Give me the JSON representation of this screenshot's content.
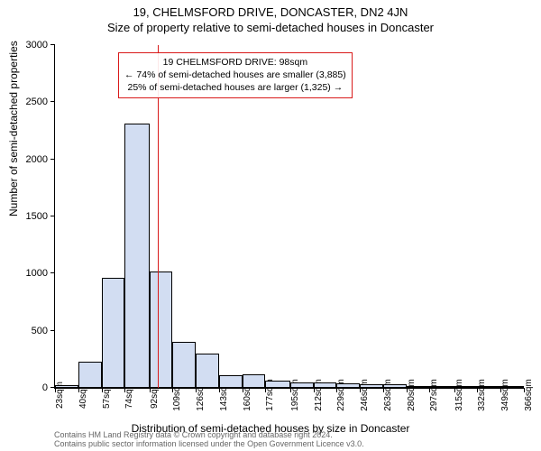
{
  "title": "19, CHELMSFORD DRIVE, DONCASTER, DN2 4JN",
  "subtitle": "Size of property relative to semi-detached houses in Doncaster",
  "ylabel": "Number of semi-detached properties",
  "xlabel": "Distribution of semi-detached houses by size in Doncaster",
  "footer_line1": "Contains HM Land Registry data © Crown copyright and database right 2024.",
  "footer_line2": "Contains public sector information licensed under the Open Government Licence v3.0.",
  "chart": {
    "type": "histogram",
    "y": {
      "min": 0,
      "max": 3000,
      "tick_step": 500,
      "ticks": [
        0,
        500,
        1000,
        1500,
        2000,
        2500,
        3000
      ]
    },
    "x": {
      "unit": "sqm",
      "tick_values": [
        23,
        40,
        57,
        74,
        92,
        109,
        126,
        143,
        160,
        177,
        195,
        212,
        229,
        246,
        263,
        280,
        297,
        315,
        332,
        349,
        366
      ]
    },
    "bars": {
      "values": [
        25,
        230,
        960,
        2310,
        1020,
        400,
        300,
        110,
        120,
        60,
        50,
        45,
        40,
        35,
        30,
        10,
        5,
        5,
        5,
        5
      ],
      "color": "#d2ddf2",
      "border_color": "#000000"
    },
    "vline": {
      "x_value": 98,
      "color": "#d91a1a"
    },
    "info_box": {
      "border_color": "#d91a1a",
      "line1": "19 CHELMSFORD DRIVE: 98sqm",
      "line2": "← 74% of semi-detached houses are smaller (3,885)",
      "line3": "25% of semi-detached houses are larger (1,325) →"
    },
    "background_color": "#ffffff",
    "tick_fontsize": 10,
    "label_fontsize": 12,
    "title_fontsize": 13
  }
}
